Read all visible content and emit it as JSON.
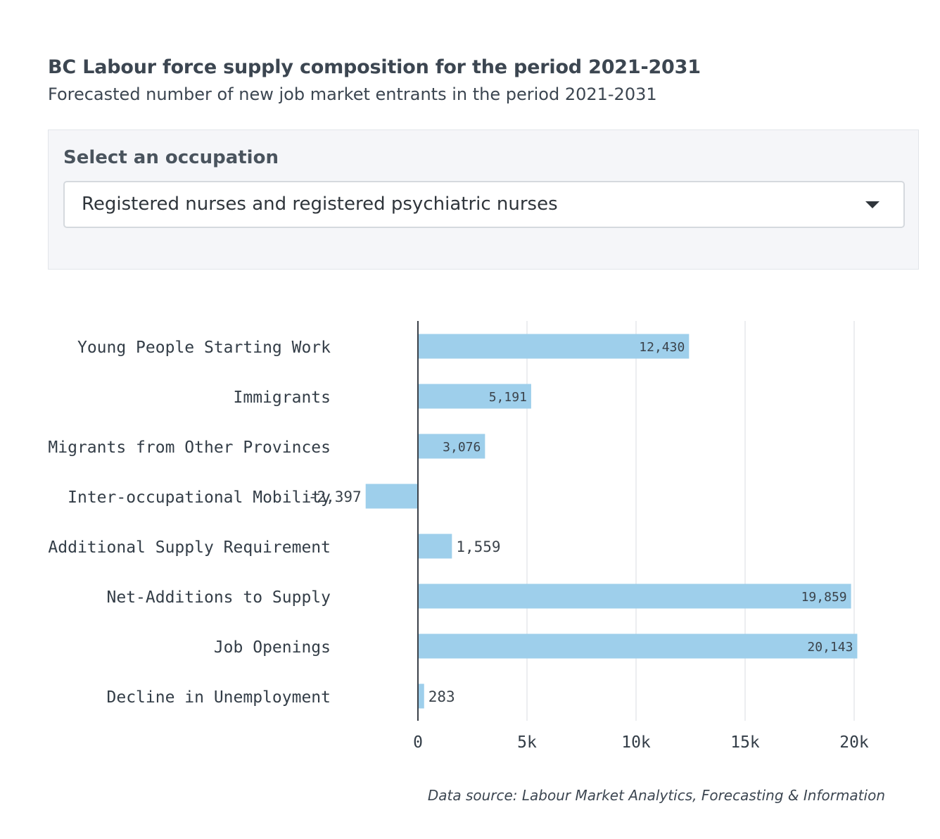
{
  "header": {
    "title": "BC Labour force supply composition for the period 2021-2031",
    "subtitle": "Forecasted number of new job market entrants in the period 2021-2031"
  },
  "filter": {
    "label": "Select an occupation",
    "selected": "Registered nurses and registered psychiatric nurses",
    "caret_icon": "triangle-down-icon"
  },
  "footer": {
    "source": "Data source: Labour Market Analytics, Forecasting & Information"
  },
  "chart_data": {
    "type": "bar",
    "orientation": "horizontal",
    "categories": [
      "Young People Starting Work",
      "Immigrants",
      "Migrants from Other Provinces",
      "Inter-occupational Mobility",
      "Additional Supply Requirement",
      "Net-Additions to Supply",
      "Job Openings",
      "Decline in Unemployment"
    ],
    "values": [
      12430,
      5191,
      3076,
      -2397,
      1559,
      19859,
      20143,
      283
    ],
    "value_labels": [
      "12,430",
      "5,191",
      "3,076",
      "-2,397",
      "1,559",
      "19,859",
      "20,143",
      "283"
    ],
    "xlim": [
      -2397,
      22000
    ],
    "xticks": [
      0,
      5000,
      10000,
      15000,
      20000
    ],
    "xtick_labels": [
      "0",
      "5k",
      "10k",
      "15k",
      "20k"
    ],
    "grid": "vertical",
    "bar_color": "#9ecfeb",
    "zero_line_color": "#3a4048",
    "grid_color": "#e6e8eb"
  }
}
